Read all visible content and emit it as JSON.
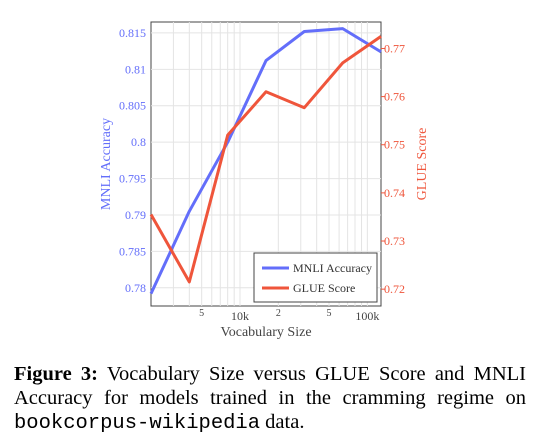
{
  "chart_data": {
    "type": "line",
    "title": "",
    "xlabel": "Vocabulary Size",
    "ylabel_left": "MNLI Accuracy",
    "ylabel_right": "GLUE Score",
    "x_scale": "log",
    "x": [
      2000,
      4000,
      8000,
      16000,
      32000,
      64000,
      128000
    ],
    "x_tick_labels": [
      {
        "value": 5000,
        "label": "5"
      },
      {
        "value": 10000,
        "label": "10k"
      },
      {
        "value": 20000,
        "label": "2"
      },
      {
        "value": 50000,
        "label": "5"
      },
      {
        "value": 100000,
        "label": "100k"
      }
    ],
    "ylim_left": [
      0.7775,
      0.8165
    ],
    "yticks_left": [
      "0.78",
      "0.785",
      "0.79",
      "0.795",
      "0.8",
      "0.805",
      "0.81",
      "0.815"
    ],
    "ylim_right": [
      0.7165,
      0.7755
    ],
    "yticks_right": [
      "0.72",
      "0.73",
      "0.74",
      "0.75",
      "0.76",
      "0.77"
    ],
    "series": [
      {
        "name": "MNLI Accuracy",
        "axis": "left",
        "color": "#636efa",
        "values": [
          0.7792,
          0.7905,
          0.8,
          0.8112,
          0.8152,
          0.8156,
          0.8124
        ]
      },
      {
        "name": "GLUE Score",
        "axis": "right",
        "color": "#ef553b",
        "values": [
          0.7355,
          0.7215,
          0.752,
          0.761,
          0.7577,
          0.767,
          0.7725
        ]
      }
    ],
    "grid": true,
    "legend": "bottom-right"
  },
  "caption": {
    "label": "Figure 3:",
    "text_before": "Vocabulary Size versus GLUE Score and MNLI Accuracy for models trained in the cramming regime on",
    "dataset": "bookcorpus-wikipedia",
    "text_after": "data."
  }
}
